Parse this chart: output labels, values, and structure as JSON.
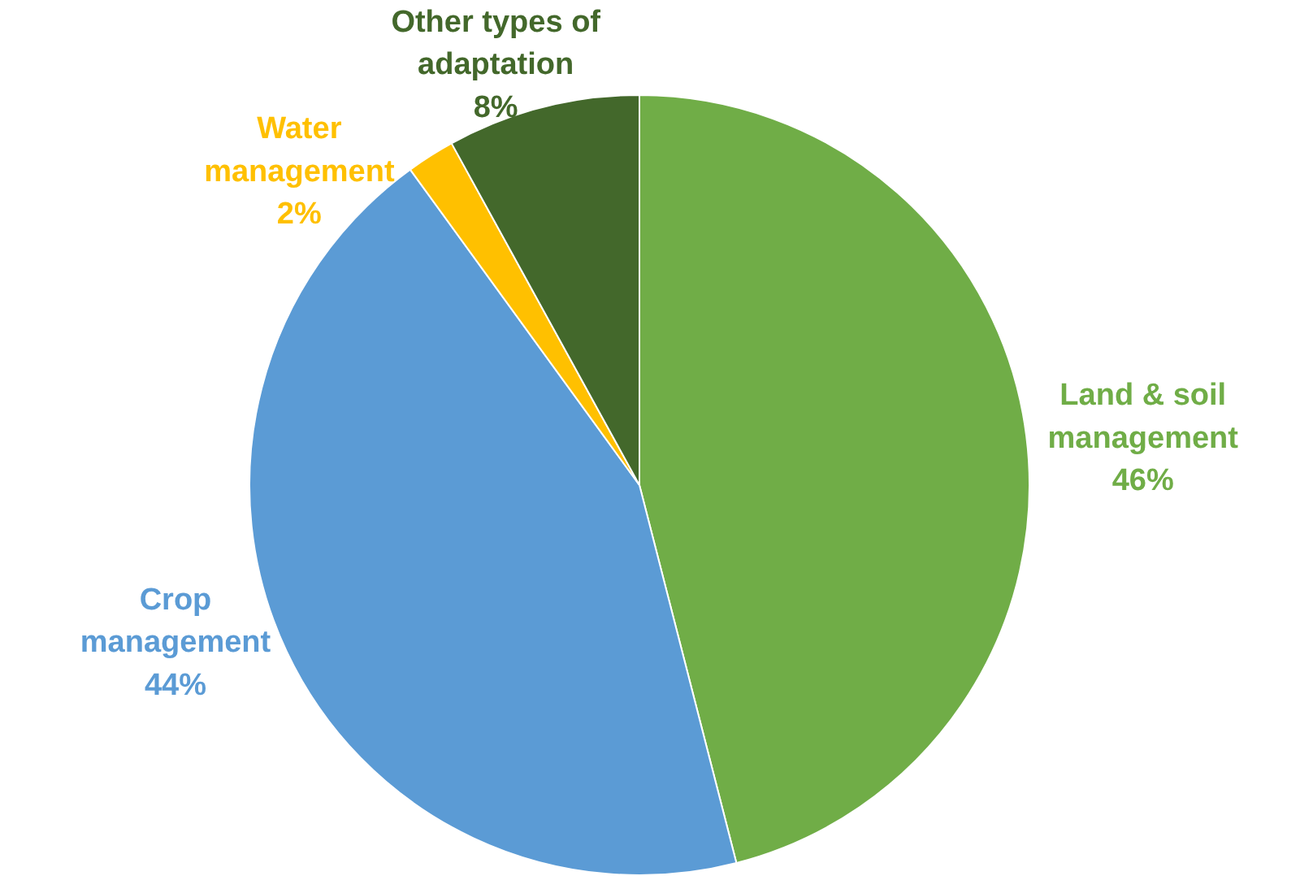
{
  "chart_data": {
    "type": "pie",
    "categories": [
      "Land & soil management",
      "Crop management",
      "Water management",
      "Other types of adaptation"
    ],
    "values": [
      46,
      44,
      2,
      8
    ],
    "value_labels": [
      "46%",
      "44%",
      "2%",
      "8%"
    ],
    "colors": [
      "#70ad47",
      "#5b9bd5",
      "#ffc000",
      "#43682b"
    ]
  }
}
